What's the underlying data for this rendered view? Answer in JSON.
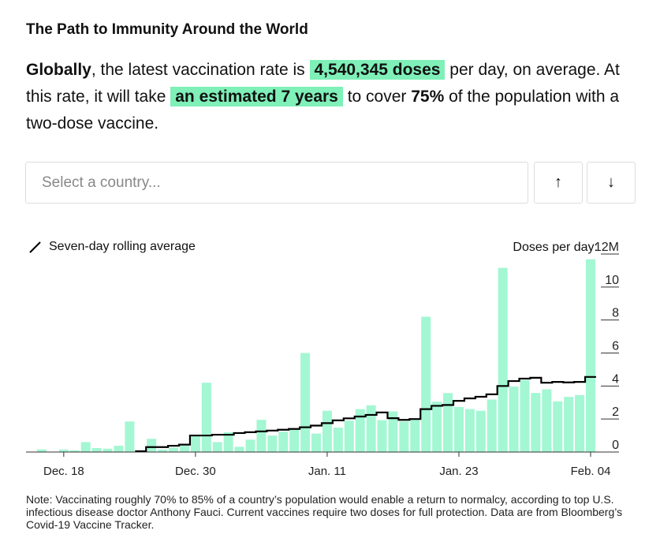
{
  "title": "The Path to Immunity Around the World",
  "lede": {
    "p1": "Globally",
    "p2": ", the latest vaccination rate is ",
    "h1": "4,540,345 doses",
    "p3": " per day, on average. At this rate, it will take ",
    "h2": "an estimated 7 years",
    "p4": " to cover ",
    "p5": "75%",
    "p6": " of the population with a two-dose vaccine."
  },
  "search": {
    "placeholder": "Select a country..."
  },
  "buttons": {
    "up": "↑",
    "down": "↓"
  },
  "note": "Note: Vaccinating roughly 70% to 85% of a country’s population would enable a return to normalcy, according to top U.S. infectious disease doctor Anthony Fauci. Current vaccines require two doses for full protection. Data are from Bloomberg’s Covid-19 Vaccine Tracker.",
  "colors": {
    "bar": "#a3f7d3",
    "highlight": "#7ff0b8",
    "line": "#000000"
  },
  "chart_data": {
    "type": "bar",
    "legend": "Seven-day rolling average",
    "ylabel": "Doses per day:",
    "ylim": [
      0,
      12
    ],
    "yticks": [
      {
        "v": 12,
        "label": "12M"
      },
      {
        "v": 10,
        "label": "10"
      },
      {
        "v": 8,
        "label": "8"
      },
      {
        "v": 6,
        "label": "6"
      },
      {
        "v": 4,
        "label": "4"
      },
      {
        "v": 2,
        "label": "2"
      },
      {
        "v": 0,
        "label": "0"
      }
    ],
    "start_date": "Dec. 16",
    "xticks": [
      {
        "i": 2,
        "label": "Dec. 18"
      },
      {
        "i": 14,
        "label": "Dec. 30"
      },
      {
        "i": 26,
        "label": "Jan. 11"
      },
      {
        "i": 38,
        "label": "Jan. 23"
      },
      {
        "i": 50,
        "label": "Feb. 04"
      }
    ],
    "series": [
      {
        "name": "Daily doses (M)",
        "values": [
          0.16,
          0,
          0.15,
          0.1,
          0.6,
          0.24,
          0.2,
          0.38,
          1.85,
          0.05,
          0.8,
          0.15,
          0.27,
          0.38,
          1.0,
          4.2,
          0.6,
          1.2,
          0.32,
          0.75,
          1.95,
          1.0,
          1.23,
          1.42,
          6.0,
          1.12,
          2.5,
          1.48,
          1.9,
          2.6,
          2.83,
          1.93,
          2.46,
          1.85,
          2.0,
          8.2,
          3.05,
          3.57,
          2.73,
          2.6,
          2.5,
          3.18,
          11.16,
          3.97,
          4.37,
          3.58,
          3.8,
          3.07,
          3.34,
          3.45,
          11.68
        ]
      },
      {
        "name": "Seven-day rolling average (M)",
        "values": [
          null,
          null,
          null,
          null,
          null,
          null,
          null,
          null,
          null,
          0.05,
          0.3,
          0.3,
          0.38,
          0.45,
          1.0,
          1.0,
          1.05,
          1.05,
          1.15,
          1.2,
          1.25,
          1.3,
          1.35,
          1.4,
          1.5,
          1.6,
          1.75,
          1.92,
          2.04,
          2.15,
          2.25,
          2.4,
          2.05,
          1.95,
          2.0,
          2.6,
          2.8,
          2.85,
          3.1,
          3.25,
          3.35,
          3.5,
          4.0,
          4.3,
          4.45,
          4.5,
          4.2,
          4.25,
          4.22,
          4.25,
          4.55
        ]
      }
    ]
  }
}
